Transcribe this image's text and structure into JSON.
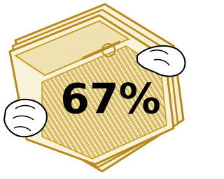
{
  "headline": "67%"
}
